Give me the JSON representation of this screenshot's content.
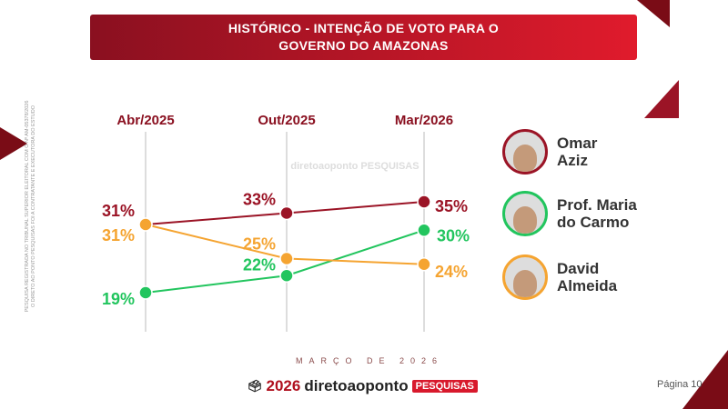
{
  "title_line1": "HISTÓRICO - INTENÇÃO DE VOTO PARA O",
  "title_line2": "GOVERNO DO AMAZONAS",
  "side_note_1": "PESQUISA REGISTRADA NO TRIBUNAL SUPERIOR ELEITORAL COM O Nº AM-05378/2026",
  "side_note_2": "O DIRETO AO PONTO PESQUISAS FOI A CONTRATANTE E EXECUTORA DO ESTUDO",
  "watermark": "diretoaoponto PESQUISAS",
  "chart_data": {
    "type": "line",
    "categories": [
      "Abr/2025",
      "Out/2025",
      "Mar/2026"
    ],
    "series": [
      {
        "name": "Omar Aziz",
        "color": "#9b1426",
        "values": [
          31,
          33,
          35
        ],
        "labels": [
          "31%",
          "33%",
          "35%"
        ]
      },
      {
        "name": "Prof. Maria do Carmo",
        "color": "#22c55e",
        "values": [
          19,
          22,
          30
        ],
        "labels": [
          "19%",
          "22%",
          "30%"
        ]
      },
      {
        "name": "David Almeida",
        "color": "#f5a431",
        "values": [
          31,
          25,
          24
        ],
        "labels": [
          "31%",
          "25%",
          "24%"
        ]
      }
    ],
    "grid": "vertical lines per category"
  },
  "candidates": [
    {
      "line1": "Omar",
      "line2": "Aziz",
      "color": "#9b1426"
    },
    {
      "line1": "Prof. Maria",
      "line2": "do Carmo",
      "color": "#22c55e"
    },
    {
      "line1": "David",
      "line2": "Almeida",
      "color": "#f5a431"
    }
  ],
  "footer": {
    "month": "MARÇO DE 2026",
    "logo_year": "2026",
    "logo_brand": "diretoaoponto",
    "logo_tag": "PESQUISAS",
    "page": "Página 10"
  }
}
